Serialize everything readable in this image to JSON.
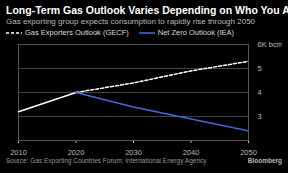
{
  "chart_data": {
    "type": "line",
    "title": "Long-Term Gas Outlook Varies Depending on Who You Ask",
    "subtitle": "Gas exporting group expects consumption to rapidly rise through 2050",
    "source": "Source: Gas Exporting Countries Forum; International Energy Agency",
    "credit": "Bloomberg",
    "x": [
      2010,
      2020,
      2030,
      2040,
      2050
    ],
    "series": [
      {
        "name": "Gas Exporters Outlook (GECF)",
        "color": "#ffffff",
        "line_style": "dashed",
        "values": [
          3.2,
          4.0,
          4.4,
          4.9,
          5.3
        ]
      },
      {
        "name": "Net Zero Outlook (IEA)",
        "color": "#3d6be0",
        "line_style": "solid",
        "values": [
          null,
          4.0,
          3.4,
          2.9,
          2.4
        ]
      }
    ],
    "xlim": [
      2010,
      2050
    ],
    "xticks": [
      2010,
      2020,
      2030,
      2040,
      2050
    ],
    "ylim": [
      2,
      6
    ],
    "yticks": [
      3,
      4,
      5,
      {
        "value": 6,
        "label": "6K bcm"
      }
    ],
    "grid": true,
    "legend": "top-left"
  }
}
